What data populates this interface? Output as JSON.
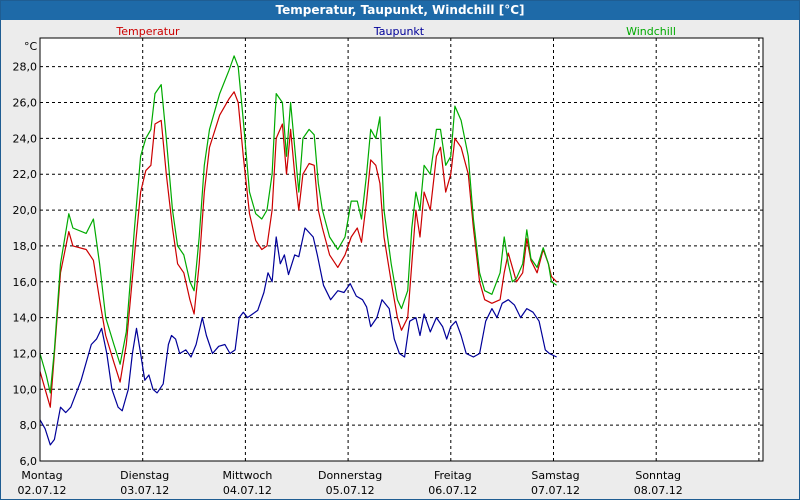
{
  "window": {
    "title": "Temperatur, Taupunkt, Windchill [°C]"
  },
  "chart_data": {
    "type": "line",
    "title": "Temperatur, Taupunkt, Windchill [°C]",
    "ylabel": "°C",
    "ylim": [
      6,
      29.6
    ],
    "xlim": [
      0,
      7
    ],
    "grid": true,
    "legend": "top",
    "yticks": [
      "6,0",
      "8,0",
      "10,0",
      "12,0",
      "14,0",
      "16,0",
      "18,0",
      "20,0",
      "22,0",
      "24,0",
      "26,0",
      "28,0"
    ],
    "x_tick_labels": [
      {
        "day": "Montag",
        "date": "02.07.12"
      },
      {
        "day": "Dienstag",
        "date": "03.07.12"
      },
      {
        "day": "Mittwoch",
        "date": "04.07.12"
      },
      {
        "day": "Donnerstag",
        "date": "05.07.12"
      },
      {
        "day": "Freitag",
        "date": "06.07.12"
      },
      {
        "day": "Samstag",
        "date": "07.07.12"
      },
      {
        "day": "Sonntag",
        "date": "08.07.12"
      }
    ],
    "series": [
      {
        "name": "Temperatur",
        "color": "#cc0000",
        "points": [
          [
            0.0,
            11.0
          ],
          [
            0.06,
            9.8
          ],
          [
            0.1,
            9.0
          ],
          [
            0.14,
            12.0
          ],
          [
            0.2,
            16.5
          ],
          [
            0.28,
            18.8
          ],
          [
            0.32,
            18.0
          ],
          [
            0.45,
            17.8
          ],
          [
            0.52,
            17.2
          ],
          [
            0.58,
            15.0
          ],
          [
            0.64,
            13.0
          ],
          [
            0.72,
            11.5
          ],
          [
            0.78,
            10.4
          ],
          [
            0.84,
            12.5
          ],
          [
            0.92,
            17.5
          ],
          [
            0.98,
            21.0
          ],
          [
            1.03,
            22.2
          ],
          [
            1.08,
            22.5
          ],
          [
            1.12,
            24.8
          ],
          [
            1.18,
            25.0
          ],
          [
            1.23,
            22.0
          ],
          [
            1.29,
            19.0
          ],
          [
            1.34,
            17.0
          ],
          [
            1.4,
            16.5
          ],
          [
            1.46,
            15.0
          ],
          [
            1.5,
            14.2
          ],
          [
            1.55,
            17.0
          ],
          [
            1.6,
            21.0
          ],
          [
            1.65,
            23.5
          ],
          [
            1.75,
            25.3
          ],
          [
            1.84,
            26.2
          ],
          [
            1.89,
            26.6
          ],
          [
            1.93,
            26.0
          ],
          [
            1.98,
            23.0
          ],
          [
            2.04,
            19.8
          ],
          [
            2.1,
            18.3
          ],
          [
            2.16,
            17.8
          ],
          [
            2.21,
            18.0
          ],
          [
            2.26,
            20.0
          ],
          [
            2.3,
            24.0
          ],
          [
            2.36,
            24.8
          ],
          [
            2.4,
            22.0
          ],
          [
            2.44,
            24.5
          ],
          [
            2.48,
            22.0
          ],
          [
            2.52,
            20.0
          ],
          [
            2.56,
            22.0
          ],
          [
            2.62,
            22.6
          ],
          [
            2.67,
            22.5
          ],
          [
            2.71,
            20.0
          ],
          [
            2.75,
            19.0
          ],
          [
            2.82,
            17.5
          ],
          [
            2.9,
            16.8
          ],
          [
            2.97,
            17.5
          ],
          [
            3.03,
            18.5
          ],
          [
            3.09,
            19.0
          ],
          [
            3.13,
            18.2
          ],
          [
            3.18,
            20.5
          ],
          [
            3.22,
            22.8
          ],
          [
            3.27,
            22.5
          ],
          [
            3.31,
            21.5
          ],
          [
            3.35,
            18.5
          ],
          [
            3.42,
            16.0
          ],
          [
            3.48,
            14.0
          ],
          [
            3.52,
            13.3
          ],
          [
            3.58,
            14.0
          ],
          [
            3.62,
            17.0
          ],
          [
            3.66,
            20.0
          ],
          [
            3.7,
            18.5
          ],
          [
            3.74,
            21.0
          ],
          [
            3.8,
            20.0
          ],
          [
            3.86,
            23.0
          ],
          [
            3.9,
            23.5
          ],
          [
            3.95,
            21.0
          ],
          [
            4.0,
            22.0
          ],
          [
            4.04,
            24.0
          ],
          [
            4.1,
            23.5
          ],
          [
            4.17,
            22.0
          ],
          [
            4.22,
            19.0
          ],
          [
            4.28,
            16.0
          ],
          [
            4.33,
            15.0
          ],
          [
            4.4,
            14.8
          ],
          [
            4.48,
            15.0
          ],
          [
            4.52,
            16.5
          ],
          [
            4.56,
            17.6
          ],
          [
            4.6,
            16.8
          ],
          [
            4.64,
            16.0
          ],
          [
            4.7,
            16.5
          ],
          [
            4.74,
            18.4
          ],
          [
            4.78,
            17.2
          ],
          [
            4.84,
            16.5
          ],
          [
            4.9,
            17.8
          ],
          [
            4.95,
            17.0
          ],
          [
            4.98,
            16.3
          ],
          [
            5.03,
            16.0
          ]
        ]
      },
      {
        "name": "Taupunkt",
        "color": "#000099",
        "points": [
          [
            0.0,
            8.3
          ],
          [
            0.05,
            7.8
          ],
          [
            0.1,
            6.9
          ],
          [
            0.14,
            7.2
          ],
          [
            0.2,
            9.0
          ],
          [
            0.25,
            8.7
          ],
          [
            0.3,
            9.0
          ],
          [
            0.4,
            10.5
          ],
          [
            0.5,
            12.5
          ],
          [
            0.55,
            12.8
          ],
          [
            0.6,
            13.4
          ],
          [
            0.65,
            12.0
          ],
          [
            0.7,
            10.0
          ],
          [
            0.76,
            9.0
          ],
          [
            0.8,
            8.8
          ],
          [
            0.86,
            10.0
          ],
          [
            0.9,
            12.0
          ],
          [
            0.94,
            13.4
          ],
          [
            0.98,
            12.0
          ],
          [
            1.02,
            10.5
          ],
          [
            1.06,
            10.8
          ],
          [
            1.1,
            10.0
          ],
          [
            1.14,
            9.8
          ],
          [
            1.2,
            10.3
          ],
          [
            1.25,
            12.5
          ],
          [
            1.28,
            13.0
          ],
          [
            1.32,
            12.8
          ],
          [
            1.36,
            12.0
          ],
          [
            1.42,
            12.2
          ],
          [
            1.47,
            11.8
          ],
          [
            1.52,
            12.5
          ],
          [
            1.58,
            14.0
          ],
          [
            1.62,
            13.0
          ],
          [
            1.68,
            12.0
          ],
          [
            1.74,
            12.4
          ],
          [
            1.8,
            12.5
          ],
          [
            1.85,
            12.0
          ],
          [
            1.9,
            12.2
          ],
          [
            1.94,
            14.0
          ],
          [
            1.98,
            14.3
          ],
          [
            2.02,
            14.0
          ],
          [
            2.07,
            14.2
          ],
          [
            2.12,
            14.4
          ],
          [
            2.18,
            15.4
          ],
          [
            2.22,
            16.5
          ],
          [
            2.26,
            16.0
          ],
          [
            2.3,
            18.5
          ],
          [
            2.34,
            17.0
          ],
          [
            2.38,
            17.5
          ],
          [
            2.42,
            16.4
          ],
          [
            2.48,
            17.5
          ],
          [
            2.52,
            17.4
          ],
          [
            2.58,
            19.0
          ],
          [
            2.66,
            18.5
          ],
          [
            2.7,
            17.5
          ],
          [
            2.76,
            15.8
          ],
          [
            2.83,
            15.0
          ],
          [
            2.9,
            15.5
          ],
          [
            2.96,
            15.4
          ],
          [
            3.02,
            15.9
          ],
          [
            3.08,
            15.2
          ],
          [
            3.14,
            15.0
          ],
          [
            3.18,
            14.6
          ],
          [
            3.22,
            13.5
          ],
          [
            3.28,
            14.0
          ],
          [
            3.33,
            15.0
          ],
          [
            3.4,
            14.5
          ],
          [
            3.45,
            12.8
          ],
          [
            3.5,
            12.0
          ],
          [
            3.55,
            11.8
          ],
          [
            3.6,
            13.8
          ],
          [
            3.66,
            14.0
          ],
          [
            3.7,
            13.0
          ],
          [
            3.74,
            14.2
          ],
          [
            3.8,
            13.2
          ],
          [
            3.86,
            14.0
          ],
          [
            3.92,
            13.5
          ],
          [
            3.96,
            12.8
          ],
          [
            4.0,
            13.5
          ],
          [
            4.05,
            13.8
          ],
          [
            4.1,
            13.0
          ],
          [
            4.15,
            12.0
          ],
          [
            4.22,
            11.8
          ],
          [
            4.28,
            12.0
          ],
          [
            4.34,
            13.8
          ],
          [
            4.4,
            14.5
          ],
          [
            4.45,
            14.0
          ],
          [
            4.5,
            14.8
          ],
          [
            4.56,
            15.0
          ],
          [
            4.62,
            14.7
          ],
          [
            4.68,
            14.0
          ],
          [
            4.74,
            14.5
          ],
          [
            4.8,
            14.3
          ],
          [
            4.86,
            13.8
          ],
          [
            4.92,
            12.2
          ],
          [
            4.96,
            12.0
          ],
          [
            5.03,
            11.8
          ]
        ]
      },
      {
        "name": "Windchill",
        "color": "#00aa00",
        "points": [
          [
            0.0,
            12.0
          ],
          [
            0.06,
            10.8
          ],
          [
            0.1,
            9.8
          ],
          [
            0.14,
            12.2
          ],
          [
            0.2,
            17.0
          ],
          [
            0.28,
            19.8
          ],
          [
            0.32,
            19.0
          ],
          [
            0.45,
            18.7
          ],
          [
            0.52,
            19.5
          ],
          [
            0.58,
            17.0
          ],
          [
            0.64,
            14.0
          ],
          [
            0.72,
            12.5
          ],
          [
            0.78,
            11.4
          ],
          [
            0.84,
            13.2
          ],
          [
            0.92,
            19.0
          ],
          [
            0.98,
            23.0
          ],
          [
            1.03,
            24.0
          ],
          [
            1.08,
            24.5
          ],
          [
            1.12,
            26.5
          ],
          [
            1.18,
            27.0
          ],
          [
            1.23,
            24.0
          ],
          [
            1.29,
            20.0
          ],
          [
            1.34,
            18.0
          ],
          [
            1.4,
            17.5
          ],
          [
            1.46,
            16.0
          ],
          [
            1.5,
            15.5
          ],
          [
            1.55,
            18.5
          ],
          [
            1.6,
            22.5
          ],
          [
            1.65,
            24.5
          ],
          [
            1.75,
            26.5
          ],
          [
            1.84,
            27.8
          ],
          [
            1.89,
            28.6
          ],
          [
            1.93,
            28.0
          ],
          [
            1.98,
            25.0
          ],
          [
            2.04,
            21.0
          ],
          [
            2.1,
            19.8
          ],
          [
            2.16,
            19.5
          ],
          [
            2.21,
            20.0
          ],
          [
            2.26,
            22.0
          ],
          [
            2.3,
            26.5
          ],
          [
            2.36,
            26.0
          ],
          [
            2.4,
            23.0
          ],
          [
            2.44,
            26.0
          ],
          [
            2.48,
            23.5
          ],
          [
            2.52,
            21.0
          ],
          [
            2.56,
            24.0
          ],
          [
            2.62,
            24.5
          ],
          [
            2.67,
            24.2
          ],
          [
            2.71,
            21.5
          ],
          [
            2.75,
            20.0
          ],
          [
            2.82,
            18.5
          ],
          [
            2.9,
            17.8
          ],
          [
            2.97,
            18.5
          ],
          [
            3.03,
            20.5
          ],
          [
            3.09,
            20.5
          ],
          [
            3.13,
            19.5
          ],
          [
            3.18,
            22.0
          ],
          [
            3.22,
            24.5
          ],
          [
            3.27,
            24.0
          ],
          [
            3.31,
            25.2
          ],
          [
            3.35,
            20.0
          ],
          [
            3.42,
            17.0
          ],
          [
            3.48,
            15.0
          ],
          [
            3.52,
            14.5
          ],
          [
            3.58,
            15.5
          ],
          [
            3.62,
            19.0
          ],
          [
            3.66,
            21.0
          ],
          [
            3.7,
            20.0
          ],
          [
            3.74,
            22.5
          ],
          [
            3.8,
            22.0
          ],
          [
            3.86,
            24.5
          ],
          [
            3.9,
            24.5
          ],
          [
            3.95,
            22.5
          ],
          [
            4.0,
            23.0
          ],
          [
            4.04,
            25.8
          ],
          [
            4.1,
            25.0
          ],
          [
            4.17,
            23.0
          ],
          [
            4.22,
            19.5
          ],
          [
            4.28,
            16.5
          ],
          [
            4.33,
            15.5
          ],
          [
            4.4,
            15.3
          ],
          [
            4.48,
            16.5
          ],
          [
            4.52,
            18.5
          ],
          [
            4.56,
            17.0
          ],
          [
            4.6,
            16.0
          ],
          [
            4.64,
            16.2
          ],
          [
            4.7,
            17.0
          ],
          [
            4.74,
            18.9
          ],
          [
            4.78,
            17.3
          ],
          [
            4.84,
            16.8
          ],
          [
            4.9,
            17.9
          ],
          [
            4.95,
            17.0
          ],
          [
            4.98,
            16.0
          ],
          [
            5.03,
            15.8
          ]
        ]
      }
    ]
  }
}
